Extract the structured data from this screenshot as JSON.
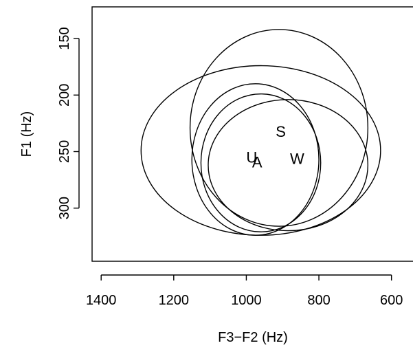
{
  "chart_data": {
    "type": "scatter",
    "xlabel": "F3−F2 (Hz)",
    "ylabel": "F1 (Hz)",
    "x_reversed": true,
    "y_reversed": true,
    "xlim": [
      1425,
      535
    ],
    "ylim": [
      122,
      347
    ],
    "xticks": [
      1400,
      1200,
      1000,
      800,
      600
    ],
    "yticks": [
      150,
      200,
      250,
      300
    ],
    "xtick_labels": [
      "1400",
      "1200",
      "1000",
      "800",
      "600"
    ],
    "ytick_labels": [
      "150",
      "200",
      "250",
      "300"
    ],
    "grid": false,
    "legend": "none",
    "points": [
      {
        "label": "S",
        "x": 905,
        "y": 232
      },
      {
        "label": "U",
        "x": 985,
        "y": 255
      },
      {
        "label": "A",
        "x": 970,
        "y": 259
      },
      {
        "label": "W",
        "x": 860,
        "y": 256
      }
    ],
    "ellipses": [
      {
        "cx": 960,
        "cy": 249,
        "rx": 330,
        "ry": 75
      },
      {
        "cx": 910,
        "cy": 229,
        "rx": 245,
        "ry": 87
      },
      {
        "cx": 975,
        "cy": 257,
        "rx": 175,
        "ry": 67
      },
      {
        "cx": 960,
        "cy": 260,
        "rx": 165,
        "ry": 61
      },
      {
        "cx": 885,
        "cy": 262,
        "rx": 220,
        "ry": 58
      }
    ]
  }
}
